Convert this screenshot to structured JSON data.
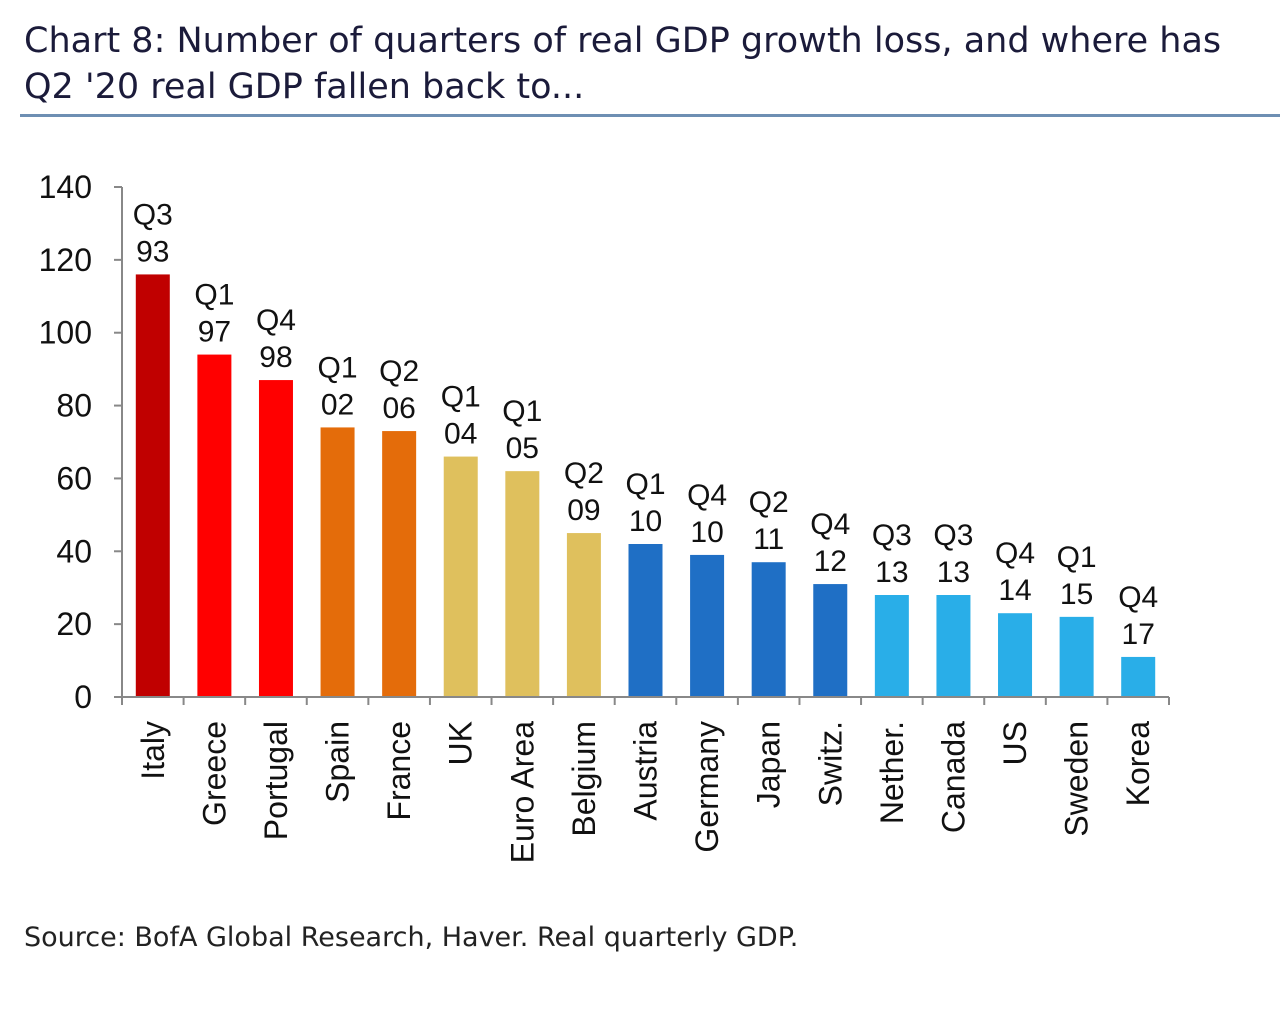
{
  "title": "Chart 8: Number of quarters of real GDP growth loss, and where has Q2 '20 real GDP fallen back to...",
  "source": "Source: BofA Global Research, Haver. Real quarterly GDP.",
  "chart_data": {
    "type": "bar",
    "title": "Chart 8: Number of quarters of real GDP growth loss, and where has Q2 '20 real GDP fallen back to...",
    "xlabel": "",
    "ylabel": "",
    "ylim": [
      0,
      140
    ],
    "yticks": [
      0,
      20,
      40,
      60,
      80,
      100,
      120,
      140
    ],
    "grid": false,
    "categories": [
      "Italy",
      "Greece",
      "Portugal",
      "Spain",
      "France",
      "UK",
      "Euro Area",
      "Belgium",
      "Austria",
      "Germany",
      "Japan",
      "Switz.",
      "Nether.",
      "Canada",
      "US",
      "Sweden",
      "Korea"
    ],
    "values": [
      116,
      94,
      87,
      74,
      73,
      66,
      62,
      45,
      42,
      39,
      37,
      31,
      28,
      28,
      23,
      22,
      11
    ],
    "data_labels": [
      [
        "Q3",
        "93"
      ],
      [
        "Q1",
        "97"
      ],
      [
        "Q4",
        "98"
      ],
      [
        "Q1",
        "02"
      ],
      [
        "Q2",
        "06"
      ],
      [
        "Q1",
        "04"
      ],
      [
        "Q1",
        "05"
      ],
      [
        "Q2",
        "09"
      ],
      [
        "Q1",
        "10"
      ],
      [
        "Q4",
        "10"
      ],
      [
        "Q2",
        "11"
      ],
      [
        "Q4",
        "12"
      ],
      [
        "Q3",
        "13"
      ],
      [
        "Q3",
        "13"
      ],
      [
        "Q4",
        "14"
      ],
      [
        "Q1",
        "15"
      ],
      [
        "Q4",
        "17"
      ]
    ],
    "colors": [
      "#c00000",
      "#ff0000",
      "#ff0000",
      "#e46c0a",
      "#e46c0a",
      "#dfc05d",
      "#dfc05d",
      "#dfc05d",
      "#1f6fc5",
      "#1f6fc5",
      "#1f6fc5",
      "#1f6fc5",
      "#29aee8",
      "#29aee8",
      "#29aee8",
      "#29aee8",
      "#29aee8"
    ]
  }
}
